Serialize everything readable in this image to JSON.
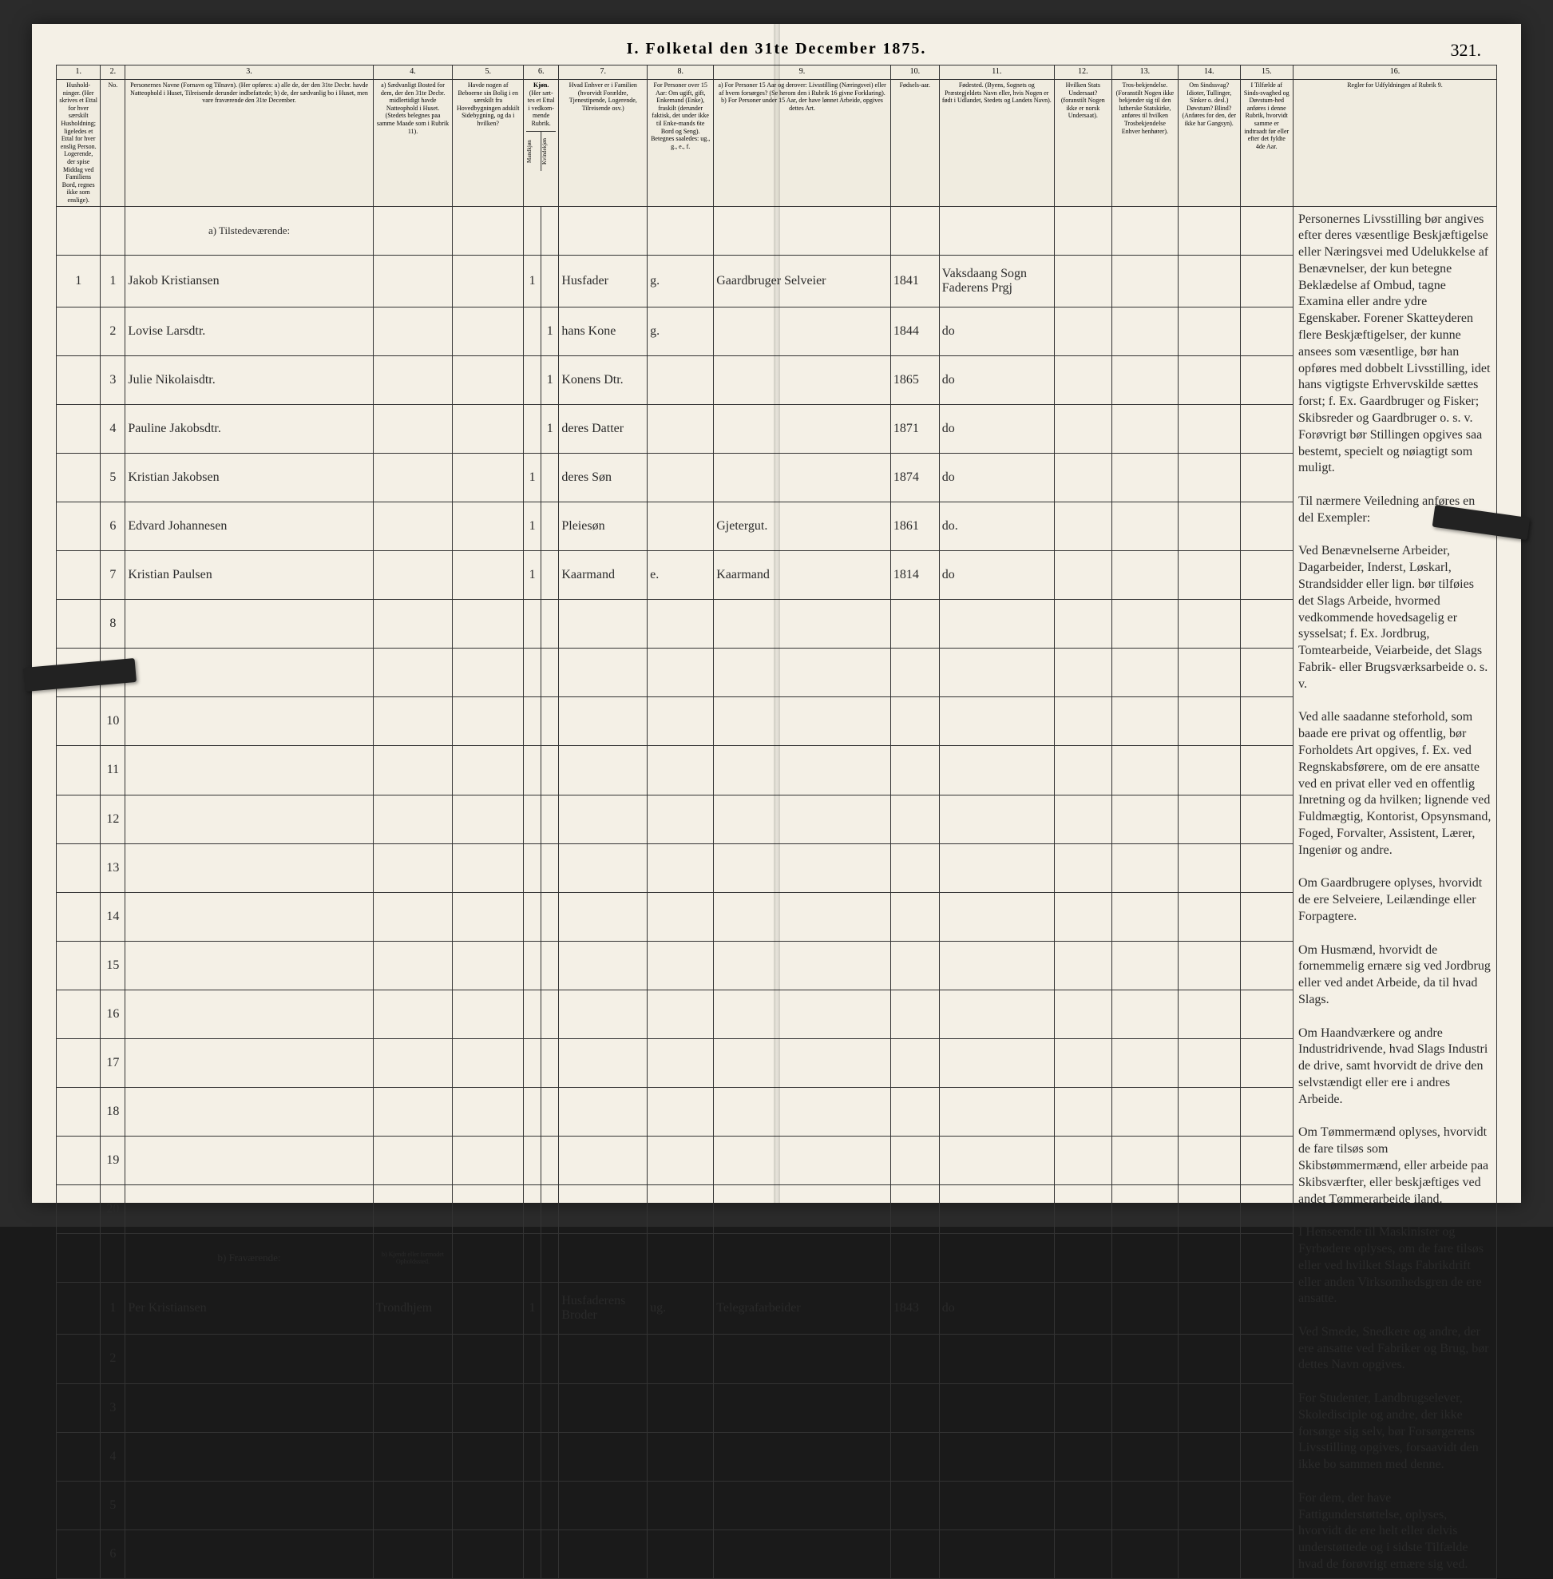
{
  "page_title": "I. Folketal den 31te December 1875.",
  "page_number": "321.",
  "columns": {
    "c1": "1.",
    "c2": "2.",
    "c3": "3.",
    "c4": "4.",
    "c5": "5.",
    "c6": "6.",
    "c7": "7.",
    "c8": "8.",
    "c9": "9.",
    "c10": "10.",
    "c11": "11.",
    "c12": "12.",
    "c13": "13.",
    "c14": "14.",
    "c15": "15.",
    "c16": "16."
  },
  "headers": {
    "h1": "Hushold-ninger. (Her skrives et Ettal for hver særskilt Husholdning; ligeledes et Ettal for hver enslig Person. Logerende, der spise Middag ved Familiens Bord, regnes ikke som enslige).",
    "h2": "No.",
    "h3": "Personernes Navne (Fornavn og Tilnavn). (Her opføres: a) alle de, der den 31te Decbr. havde Natteophold i Huset, Tilreisende derunder indbefattede; b) de, der sædvanlig bo i Huset, men vare fraværende den 31te December.",
    "h4": "a) Sædvanligt Bosted for dem, der den 31te Decbr. midlertidigt havde Natteophold i Huset. (Stedets belegnes paa samme Maade som i Rubrik 11).",
    "h5": "Havde nogen af Beboerne sin Bolig i en særskilt fra Hovedbygningen adskilt Sidebygning, og da i hvilken?",
    "h6_top": "Kjøn.",
    "h6a": "(Her sæt-tes et Ettal i vedkom-mende Rubrik.",
    "h6_m": "Mandkjøn",
    "h6_k": "Kvindekjøn",
    "h7": "Hvad Enhver er i Familien (hvorvidt Forældre, Tjenestipende, Logerende, Tilreisende osv.)",
    "h8": "For Personer over 15 Aar: Om ugift, gift, Enkemand (Enke), fraskilt (derunder faktisk, det under ikke til Enke-mands 6te Bord og Seng). Betegnes saaledes: ug., g., e., f.",
    "h9": "a) For Personer 15 Aar og derover: Livsstilling (Næringsvei) eller af hvem forsørges? (Se herom den i Rubrik 16 givne Forklaring). b) For Personer under 15 Aar, der have lønnet Arbeide, opgives dettes Art.",
    "h10": "Fødsels-aar.",
    "h11": "Fødested. (Byens, Sognets og Præstegjeldets Navn eller, hvis Nogen er født i Udlandet, Stedets og Landets Navn).",
    "h12": "Hvilken Stats Undersaat? (foranstilt Nogen ikke er norsk Undersaat).",
    "h13": "Tros-bekjendelse. (Foranstilt Nogen ikke bekjender sig til den lutherske Statskirke, anføres til hvilken Trosbekjendelse Enhver henhører).",
    "h14": "Om Sindssvag? Idioter, Tullinger, Sinker o. desl.) Døvstum? Blind? (Anføres for den, der ikke har Gangsyn).",
    "h15": "I Tilfælde af Sinds-svaghed og Døvstum-hed anføres i denne Rubrik, hvorvidt samme er indtraadt før eller efter det fyldte 4de Aar.",
    "h16": "Regler for Udfyldningen af Rubrik 9."
  },
  "section_a": "a) Tilstedeværende:",
  "section_b": "b) Fraværende:",
  "section_b_h4": "b) Kjendt eller formodet Opholdssted.",
  "rows_a": [
    {
      "hh": "1",
      "n": "1",
      "name": "Jakob Kristiansen",
      "c4": "",
      "c5": "",
      "m": "1",
      "k": "",
      "fam": "Husfader",
      "civ": "g.",
      "occ": "Gaardbruger Selveier",
      "year": "1841",
      "place": "Vaksdaang Sogn Faderens Prgj",
      "c12": "",
      "c13": "",
      "c14": "",
      "c15": ""
    },
    {
      "hh": "",
      "n": "2",
      "name": "Lovise Larsdtr.",
      "c4": "",
      "c5": "",
      "m": "",
      "k": "1",
      "fam": "hans Kone",
      "civ": "g.",
      "occ": "",
      "year": "1844",
      "place": "do",
      "c12": "",
      "c13": "",
      "c14": "",
      "c15": ""
    },
    {
      "hh": "",
      "n": "3",
      "name": "Julie Nikolaisdtr.",
      "c4": "",
      "c5": "",
      "m": "",
      "k": "1",
      "fam": "Konens Dtr.",
      "civ": "",
      "occ": "",
      "year": "1865",
      "place": "do",
      "c12": "",
      "c13": "",
      "c14": "",
      "c15": ""
    },
    {
      "hh": "",
      "n": "4",
      "name": "Pauline Jakobsdtr.",
      "c4": "",
      "c5": "",
      "m": "",
      "k": "1",
      "fam": "deres Datter",
      "civ": "",
      "occ": "",
      "year": "1871",
      "place": "do",
      "c12": "",
      "c13": "",
      "c14": "",
      "c15": ""
    },
    {
      "hh": "",
      "n": "5",
      "name": "Kristian Jakobsen",
      "c4": "",
      "c5": "",
      "m": "1",
      "k": "",
      "fam": "deres Søn",
      "civ": "",
      "occ": "",
      "year": "1874",
      "place": "do",
      "c12": "",
      "c13": "",
      "c14": "",
      "c15": ""
    },
    {
      "hh": "",
      "n": "6",
      "name": "Edvard Johannesen",
      "c4": "",
      "c5": "",
      "m": "1",
      "k": "",
      "fam": "Pleiesøn",
      "civ": "",
      "occ": "Gjetergut.",
      "year": "1861",
      "place": "do.",
      "c12": "",
      "c13": "",
      "c14": "",
      "c15": ""
    },
    {
      "hh": "",
      "n": "7",
      "name": "Kristian Paulsen",
      "c4": "",
      "c5": "",
      "m": "1",
      "k": "",
      "fam": "Kaarmand",
      "civ": "e.",
      "occ": "Kaarmand",
      "year": "1814",
      "place": "do",
      "c12": "",
      "c13": "",
      "c14": "",
      "c15": ""
    }
  ],
  "empty_a": [
    "8",
    "9",
    "10",
    "11",
    "12",
    "13",
    "14",
    "15",
    "16",
    "17",
    "18",
    "19",
    "20"
  ],
  "rows_b": [
    {
      "hh": "",
      "n": "1",
      "name": "Per Kristiansen",
      "c4": "Trondhjem",
      "c5": "",
      "m": "1",
      "k": "",
      "fam": "Husfaderens Broder",
      "civ": "ug.",
      "occ": "Telegrafarbeider",
      "year": "1843",
      "place": "do",
      "c12": "",
      "c13": "",
      "c14": "",
      "c15": ""
    }
  ],
  "empty_b": [
    "2",
    "3",
    "4",
    "5",
    "6"
  ],
  "rules_text": "Personernes Livsstilling bør angives efter deres væsentlige Beskjæftigelse eller Næringsvei med Udelukkelse af Benævnelser, der kun betegne Beklædelse af Ombud, tagne Examina eller andre ydre Egenskaber. Forener Skatteyderen flere Beskjæftigelser, der kunne ansees som væsentlige, bør han opføres med dobbelt Livsstilling, idet hans vigtigste Erhvervskilde sættes forst; f. Ex. Gaardbruger og Fisker; Skibsreder og Gaardbruger o. s. v. Forøvrigt bør Stillingen opgives saa bestemt, specielt og nøiagtigt som muligt.\n\nTil nærmere Veiledning anføres en del Exempler:\n\nVed Benævnelserne Arbeider, Dagarbeider, Inderst, Løskarl, Strandsidder eller lign. bør tilføies det Slags Arbeide, hvormed vedkommende hovedsagelig er sysselsat; f. Ex. Jordbrug, Tomtearbeide, Veiarbeide, det Slags Fabrik- eller Brugsværksarbeide o. s. v.\n\nVed alle saadanne steforhold, som baade ere privat og offentlig, bør Forholdets Art opgives, f. Ex. ved Regnskabsførere, om de ere ansatte ved en privat eller ved en offentlig Inretning og da hvilken; lignende ved Fuldmægtig, Kontorist, Opsynsmand, Foged, Forvalter, Assistent, Lærer, Ingeniør og andre.\n\nOm Gaardbrugere oplyses, hvorvidt de ere Selveiere, Leilændinge eller Forpagtere.\n\nOm Husmænd, hvorvidt de fornemmelig ernære sig ved Jordbrug eller ved andet Arbeide, da til hvad Slags.\n\nOm Haandværkere og andre Industridrivende, hvad Slags Industri de drive, samt hvorvidt de drive den selvstændigt eller ere i andres Arbeide.\n\nOm Tømmermænd oplyses, hvorvidt de fare tilsøs som Skibstømmermænd, eller arbeide paa Skibsværfter, eller beskjæftiges ved andet Tømmerarbeide iland.\n\nI Henseende til Maskinister og Fyrbødere oplyses, om de fare tilsøs eller ved hvilket Slags Fabrikdrift eller anden Virksomhedsgren de ere ansatte.\n\nVed Smede, Snedkere og andre, der ere ansatte ved Fabriker og Brug, bør dettes Navn opgives.\n\nFor Studenter, Landbrugselever, Skoledisciple og andre, der ikke forsørge sig selv, bør Forsørgerens Livsstilling opgives, forsaavidt den ikke bo sammen med denne.\n\nFor dem, der have Fattigunderstøttelse, oplyses, hvorvidt de ere helt eller delvis understøttede og i sidste Tilfælde hvad de forøvrigt ernære sig ved."
}
